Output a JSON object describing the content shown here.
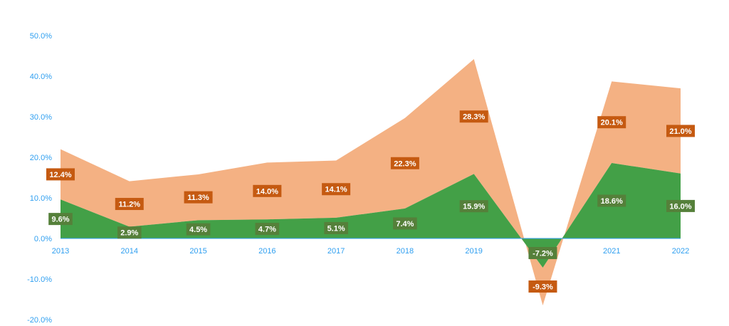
{
  "chart_data": {
    "type": "area",
    "stacked": true,
    "categories": [
      "2013",
      "2014",
      "2015",
      "2016",
      "2017",
      "2018",
      "2019",
      "",
      "2021",
      "2022"
    ],
    "series": [
      {
        "values": [
          9.6,
          2.9,
          4.5,
          4.7,
          5.1,
          7.4,
          15.9,
          -7.2,
          18.6,
          16.0
        ],
        "labels": [
          "9.6%",
          "2.9%",
          "4.5%",
          "4.7%",
          "5.1%",
          "7.4%",
          "15.9%",
          "-7.2%",
          "18.6%",
          "16.0%"
        ],
        "color": "#43a047",
        "label_bg": "#55803a"
      },
      {
        "values": [
          12.4,
          11.2,
          11.3,
          14.0,
          14.1,
          22.3,
          28.3,
          -9.3,
          20.1,
          21.0
        ],
        "labels": [
          "12.4%",
          "11.2%",
          "11.3%",
          "14.0%",
          "14.1%",
          "22.3%",
          "28.3%",
          "-9.3%",
          "20.1%",
          "21.0%"
        ],
        "color": "#f4b183",
        "label_bg": "#c55a11"
      }
    ],
    "ylim": [
      -20,
      50
    ],
    "yticks": [
      "50.0%",
      "40.0%",
      "30.0%",
      "20.0%",
      "10.0%",
      "0.0%",
      "-10.0%",
      "-20.0%"
    ],
    "ytick_values": [
      50,
      40,
      30,
      20,
      10,
      0,
      -10,
      -20
    ],
    "grid": false,
    "legend": false,
    "axis_color": "#2f9ff0"
  }
}
